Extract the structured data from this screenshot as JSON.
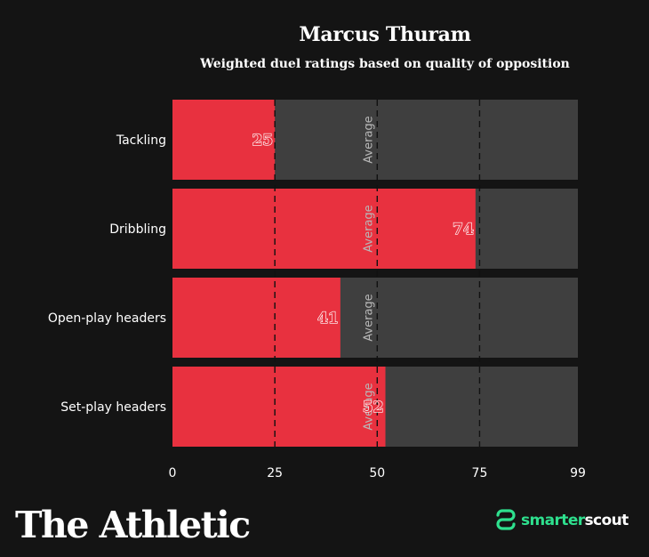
{
  "title": "Marcus Thuram",
  "subtitle": "Weighted duel ratings based on quality of opposition",
  "brand": "The Athletic",
  "partner": {
    "prefix": "smarter",
    "suffix": "scout",
    "icon": "smarterscout-logo-icon",
    "color": "#2ee08e"
  },
  "colors": {
    "bar": "#e8313f",
    "track": "#3f3f3f",
    "background": "#141414"
  },
  "chart_data": {
    "type": "bar",
    "orientation": "horizontal",
    "categories": [
      "Tackling",
      "Dribbling",
      "Open-play headers",
      "Set-play headers"
    ],
    "values": [
      25,
      74,
      41,
      52
    ],
    "xlim": [
      0,
      99
    ],
    "xticks": [
      0,
      25,
      50,
      75,
      99
    ],
    "gridlines": [
      25,
      50,
      75
    ],
    "annotation": {
      "text": "Average",
      "at": 50
    }
  }
}
